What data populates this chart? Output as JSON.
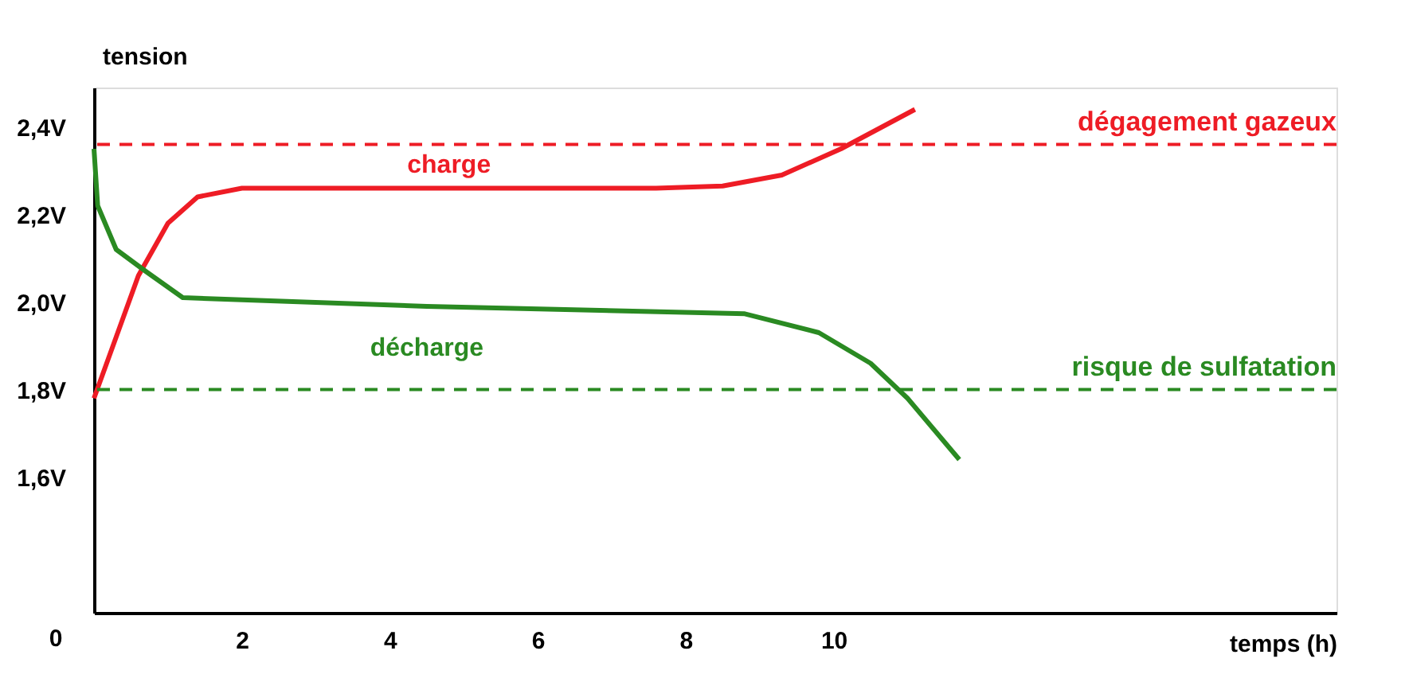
{
  "chart_data": {
    "type": "line",
    "xlabel": "temps (h)",
    "ylabel": "tension",
    "xlim": [
      0,
      16.8
    ],
    "ylim": [
      1.29,
      2.49
    ],
    "xticks": [
      2,
      4,
      6,
      8,
      10
    ],
    "yticks": [
      {
        "value": 1.6,
        "label": "1,6V"
      },
      {
        "value": 1.8,
        "label": "1,8V"
      },
      {
        "value": 2.0,
        "label": "2,0V"
      },
      {
        "value": 2.2,
        "label": "2,2V"
      },
      {
        "value": 2.4,
        "label": "2,4V"
      }
    ],
    "grid": false,
    "marker": "none",
    "line_style": "solid",
    "series": [
      {
        "name": "charge",
        "color": "#ee1c25",
        "x": [
          0,
          0.3,
          0.6,
          1.0,
          1.4,
          2.0,
          4.8,
          7.6,
          8.5,
          9.3,
          10.1,
          11.1
        ],
        "values": [
          1.78,
          1.92,
          2.06,
          2.18,
          2.24,
          2.26,
          2.26,
          2.26,
          2.265,
          2.29,
          2.35,
          2.44
        ]
      },
      {
        "name": "décharge",
        "color": "#2a8a22",
        "x": [
          0,
          0.05,
          0.3,
          0.7,
          1.2,
          4.5,
          8.8,
          9.8,
          10.5,
          11.0,
          11.7
        ],
        "values": [
          2.35,
          2.22,
          2.12,
          2.07,
          2.01,
          1.99,
          1.973,
          1.93,
          1.86,
          1.78,
          1.64
        ]
      }
    ],
    "ref_lines": [
      {
        "axis": "y",
        "value": 2.36,
        "label": "dégagement gazeux",
        "color": "#ee1c25",
        "line_style": "dashed"
      },
      {
        "axis": "y",
        "value": 1.8,
        "label": "risque de sulfatation",
        "color": "#2a8a22",
        "line_style": "dashed"
      }
    ],
    "annotations": [
      "0"
    ]
  }
}
